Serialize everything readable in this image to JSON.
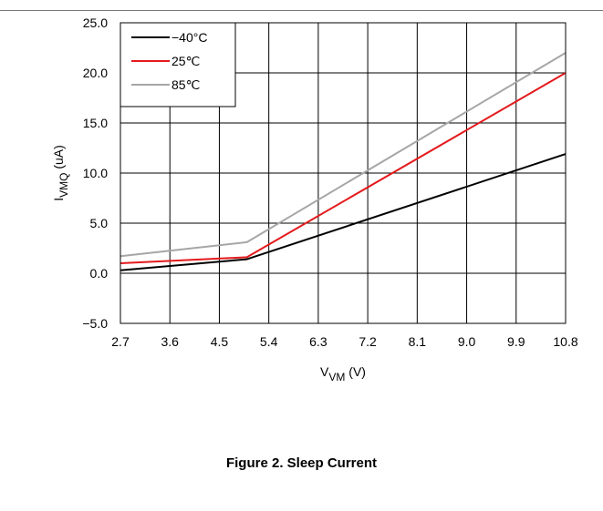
{
  "chart_data": {
    "type": "line",
    "x": [
      2.7,
      5.0,
      10.8
    ],
    "series": [
      {
        "name": "−40°C",
        "color": "#000000",
        "values": [
          0.3,
          1.4,
          11.9
        ]
      },
      {
        "name": "25℃",
        "color": "#e41a1c",
        "values": [
          1.0,
          1.6,
          20.0
        ]
      },
      {
        "name": "85℃",
        "color": "#a6a6a6",
        "values": [
          1.7,
          3.1,
          22.0
        ]
      }
    ],
    "xlim": [
      2.7,
      10.8
    ],
    "ylim": [
      -5.0,
      25.0
    ],
    "xticks": [
      "2.7",
      "3.6",
      "4.5",
      "5.4",
      "6.3",
      "7.2",
      "8.1",
      "9.0",
      "9.9",
      "10.8"
    ],
    "yticks": [
      "−5.0",
      "0.0",
      "5.0",
      "10.0",
      "15.0",
      "20.0",
      "25.0"
    ],
    "xlabel": {
      "main": "V",
      "sub": "VM",
      "unit": " (V)"
    },
    "ylabel": {
      "main": "I",
      "sub": "VMQ",
      "unit": " (uA)"
    },
    "grid": true,
    "legend": "top-left"
  },
  "caption": "Figure 2. Sleep Current"
}
